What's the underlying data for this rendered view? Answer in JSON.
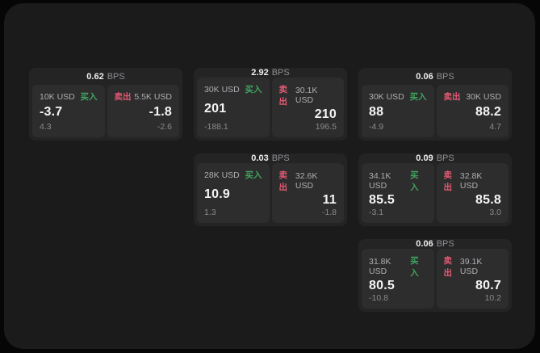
{
  "colors": {
    "buy_green": "#3fa45e",
    "sell_red": "#e25a73",
    "panel_bg": "#1b1b1c",
    "card_bg": "#242425",
    "tile_bg": "#2d2d2e"
  },
  "labels": {
    "bps": "BPS",
    "buy": "买入",
    "sell": "卖出"
  },
  "cards": [
    {
      "bps": "0.62",
      "buy": {
        "size": "10K USD",
        "value": "-3.7",
        "delta": "4.3"
      },
      "sell": {
        "size": "5.5K USD",
        "value": "-1.8",
        "delta": "-2.6"
      }
    },
    {
      "bps": "2.92",
      "buy": {
        "size": "30K USD",
        "value": "201",
        "delta": "-188.1"
      },
      "sell": {
        "size": "30.1K USD",
        "value": "210",
        "delta": "196.5"
      }
    },
    {
      "bps": "0.06",
      "buy": {
        "size": "30K USD",
        "value": "88",
        "delta": "-4.9"
      },
      "sell": {
        "size": "30K USD",
        "value": "88.2",
        "delta": "4.7"
      }
    },
    {
      "bps": "0.03",
      "buy": {
        "size": "28K USD",
        "value": "10.9",
        "delta": "1.3"
      },
      "sell": {
        "size": "32.6K USD",
        "value": "11",
        "delta": "-1.8"
      }
    },
    {
      "bps": "0.09",
      "buy": {
        "size": "34.1K USD",
        "value": "85.5",
        "delta": "-3.1"
      },
      "sell": {
        "size": "32.8K USD",
        "value": "85.8",
        "delta": "3.0"
      }
    },
    {
      "bps": "0.06",
      "buy": {
        "size": "31.8K USD",
        "value": "80.5",
        "delta": "-10.8"
      },
      "sell": {
        "size": "39.1K USD",
        "value": "80.7",
        "delta": "10.2"
      }
    }
  ]
}
